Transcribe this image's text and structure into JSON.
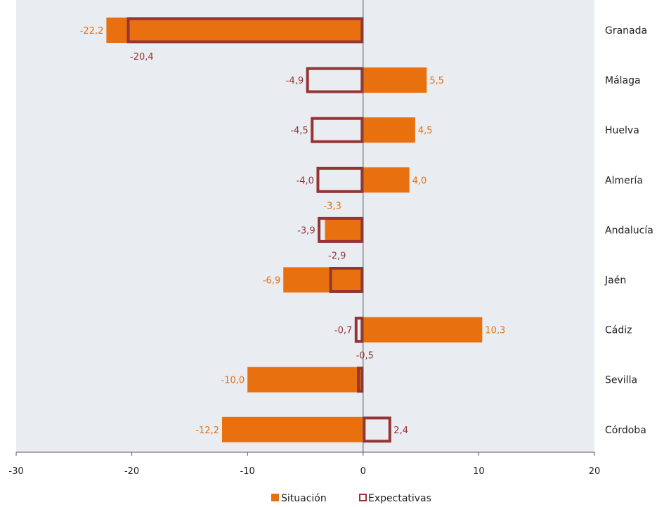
{
  "chart_data": {
    "type": "bar",
    "orientation": "horizontal",
    "categories": [
      "Granada",
      "Málaga",
      "Huelva",
      "Almería",
      "Andalucía",
      "Jaén",
      "Cádiz",
      "Sevilla",
      "Córdoba"
    ],
    "series": [
      {
        "name": "Situación",
        "values": [
          -22.2,
          5.5,
          4.5,
          4.0,
          -3.3,
          -6.9,
          10.3,
          -10.0,
          -12.2
        ],
        "labels": [
          "-22,2",
          "5,5",
          "4,5",
          "4,0",
          "-3,3",
          "-6,9",
          "10,3",
          "-10,0",
          "-12,2"
        ],
        "color": "#e8700e",
        "style": "filled"
      },
      {
        "name": "Expectativas",
        "values": [
          -20.4,
          -4.9,
          -4.5,
          -4.0,
          -3.9,
          -2.9,
          -0.7,
          -0.5,
          2.4
        ],
        "labels": [
          "-20,4",
          "-4,9",
          "-4,5",
          "-4,0",
          "-3,9",
          "-2,9",
          "-0,7",
          "-0,5",
          "2,4"
        ],
        "color": "#963434",
        "style": "outline"
      }
    ],
    "xlim": [
      -30,
      20
    ],
    "xticks": [
      -30,
      -20,
      -10,
      0,
      10,
      20
    ],
    "xtick_labels": [
      "-30",
      "-20",
      "-10",
      "0",
      "10",
      "20"
    ],
    "legend_position": "bottom",
    "plot_background": "#e9ecf1",
    "grid": false
  }
}
